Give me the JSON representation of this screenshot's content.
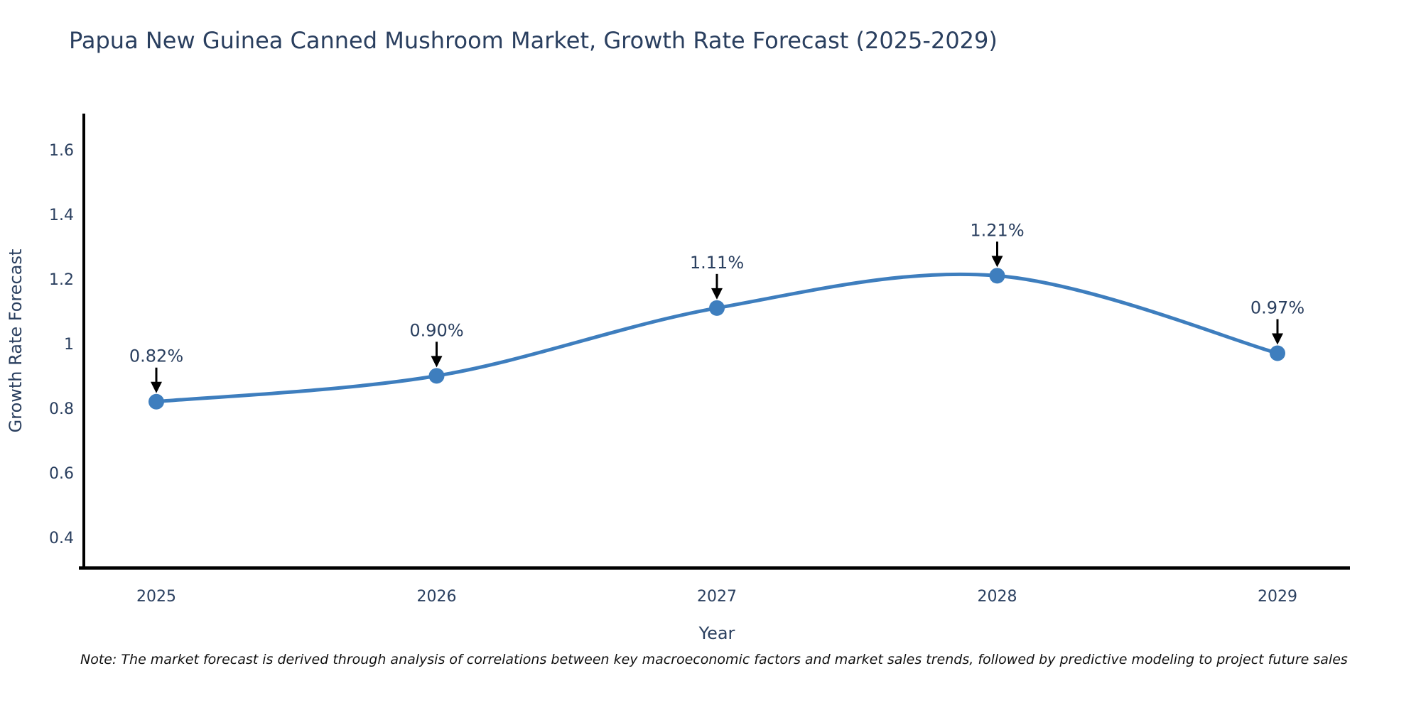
{
  "footnote": {
    "text": "Note: The market forecast is derived through analysis of correlations between key macroeconomic factors and market sales trends, followed by predictive modeling to project future sales"
  },
  "chart_data": {
    "type": "line",
    "line_shape": "spline",
    "title": "Papua New Guinea Canned Mushroom Market, Growth Rate Forecast (2025-2029)",
    "xlabel": "Year",
    "ylabel": "Growth Rate Forecast",
    "categories": [
      "2025",
      "2026",
      "2027",
      "2028",
      "2029"
    ],
    "series": [
      {
        "name": "Growth Rate Forecast",
        "values": [
          0.82,
          0.9,
          1.11,
          1.21,
          0.97
        ],
        "point_labels": [
          "0.82%",
          "0.90%",
          "1.11%",
          "1.21%",
          "0.97%"
        ]
      }
    ],
    "ylim": [
      0.305,
      1.712
    ],
    "yticks": [
      0.4,
      0.6,
      0.8,
      1,
      1.2,
      1.4,
      1.6
    ],
    "ytick_labels": [
      "0.4",
      "0.6",
      "0.8",
      "1",
      "1.2",
      "1.4",
      "1.6"
    ],
    "grid": false,
    "legend": "none",
    "annotations": "arrow-down-to-point",
    "colors": {
      "line": "#3e7ebe",
      "marker": "#3e7ebe",
      "axis": "#000000",
      "text": "#2a3f5f",
      "arrow": "#000000",
      "background": "#ffffff"
    }
  }
}
